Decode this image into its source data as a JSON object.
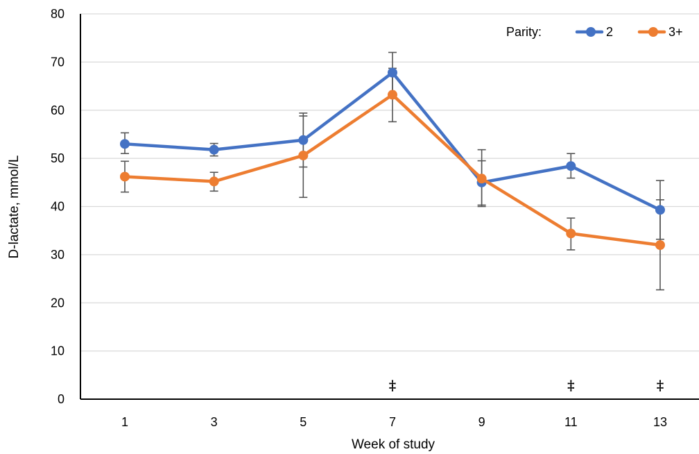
{
  "chart_data": {
    "type": "line",
    "title": "",
    "xlabel": "Week of study",
    "ylabel": "D-lactate, mmol/L",
    "categories": [
      "1",
      "3",
      "5",
      "7",
      "9",
      "11",
      "13"
    ],
    "x": [
      1,
      3,
      5,
      7,
      9,
      11,
      13
    ],
    "ylim": [
      0,
      80
    ],
    "yticks": [
      "0",
      "10",
      "20",
      "30",
      "40",
      "50",
      "60",
      "70",
      "80"
    ],
    "grid": true,
    "legend": {
      "title": "Parity:",
      "placement": "top-right"
    },
    "series": [
      {
        "name": "2",
        "color": "#4472C4",
        "values": [
          53.0,
          51.8,
          53.8,
          67.8,
          45.0,
          48.4,
          39.3
        ],
        "error_low": [
          51.0,
          50.5,
          48.2,
          63.6,
          40.0,
          45.9,
          33.2
        ],
        "error_high": [
          55.3,
          53.1,
          59.4,
          72.0,
          51.8,
          51.0,
          45.4
        ]
      },
      {
        "name": "3+",
        "color": "#ED7D31",
        "values": [
          46.2,
          45.2,
          50.6,
          63.2,
          45.8,
          34.4,
          32.0
        ],
        "error_low": [
          43.0,
          43.2,
          41.9,
          57.6,
          40.3,
          31.0,
          22.7
        ],
        "error_high": [
          49.4,
          47.1,
          58.8,
          68.7,
          49.5,
          37.6,
          41.4
        ]
      }
    ],
    "annotations": [
      {
        "x": 7,
        "text": "‡"
      },
      {
        "x": 11,
        "text": "‡"
      },
      {
        "x": 13,
        "text": "‡"
      }
    ]
  }
}
